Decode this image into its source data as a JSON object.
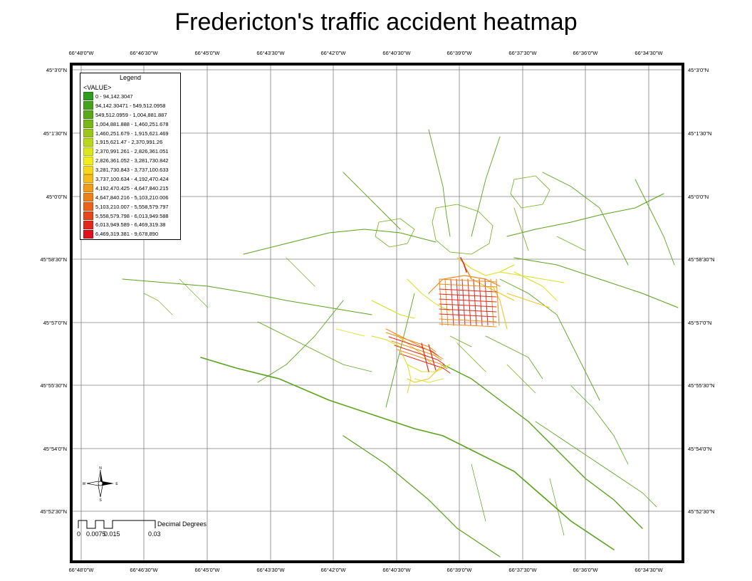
{
  "title": "Fredericton's traffic accident heatmap",
  "graticule": {
    "top_labels": [
      "66°48'0\"W",
      "66°46'30\"W",
      "66°45'0\"W",
      "66°43'30\"W",
      "66°42'0\"W",
      "66°40'30\"W",
      "66°39'0\"W",
      "66°37'30\"W",
      "66°36'0\"W",
      "66°34'30\"W"
    ],
    "bottom_labels": [
      "66°48'0\"W",
      "66°46'30\"W",
      "66°45'0\"W",
      "66°43'30\"W",
      "66°42'0\"W",
      "66°40'30\"W",
      "66°39'0\"W",
      "66°37'30\"W",
      "66°36'0\"W",
      "66°34'30\"W"
    ],
    "left_labels": [
      "45°3'0\"N",
      "45°1'30\"N",
      "45°0'0\"N",
      "45°58'30\"N",
      "45°57'0\"N",
      "45°55'30\"N",
      "45°54'0\"N",
      "45°52'30\"N"
    ],
    "right_labels": [
      "45°3'0\"N",
      "45°1'30\"N",
      "45°0'0\"N",
      "45°58'30\"N",
      "45°57'0\"N",
      "45°55'30\"N",
      "45°54'0\"N",
      "45°52'30\"N"
    ]
  },
  "legend": {
    "title": "Legend",
    "field": "<VALUE>",
    "classes": [
      {
        "label": "0 - 94,142.3047",
        "color": "#2e9c1e"
      },
      {
        "label": "94,142.30471 - 549,512.0958",
        "color": "#44a21c"
      },
      {
        "label": "549,512.0959 - 1,004,881.887",
        "color": "#5aa91b"
      },
      {
        "label": "1,004,881.888 - 1,460,251.678",
        "color": "#78b61a"
      },
      {
        "label": "1,460,251.679 - 1,915,621.469",
        "color": "#9bc71a"
      },
      {
        "label": "1,915,621.47 - 2,370,991.26",
        "color": "#bcd81c"
      },
      {
        "label": "2,370,991.261 - 2,826,361.051",
        "color": "#dce61e"
      },
      {
        "label": "2,826,361.052 - 3,281,730.842",
        "color": "#f2ec1c"
      },
      {
        "label": "3,281,730.843 - 3,737,100.633",
        "color": "#f7d61c"
      },
      {
        "label": "3,737,100.634 - 4,192,470.424",
        "color": "#f6bb1c"
      },
      {
        "label": "4,192,470.425 - 4,647,840.215",
        "color": "#f39c1c"
      },
      {
        "label": "4,647,840.216 - 5,103,210.006",
        "color": "#ee801c"
      },
      {
        "label": "5,103,210.007 - 5,558,579.797",
        "color": "#ea631c"
      },
      {
        "label": "5,558,579.798 - 6,013,949.588",
        "color": "#e6461c"
      },
      {
        "label": "6,013,949.589 - 6,469,319.38",
        "color": "#e2281c"
      },
      {
        "label": "6,469,319.381 - 9,678,890",
        "color": "#e0101c"
      }
    ]
  },
  "compass": {
    "n": "N",
    "s": "S",
    "e": "E",
    "w": "W"
  },
  "scalebar": {
    "ticks": [
      "0",
      "0.0075",
      "0.015",
      "0.03"
    ],
    "units": "Decimal Degrees"
  },
  "colors": {
    "low": "#4a9e1a",
    "mid": "#e6e01c",
    "high": "#e0101c",
    "grid": "#808080"
  }
}
